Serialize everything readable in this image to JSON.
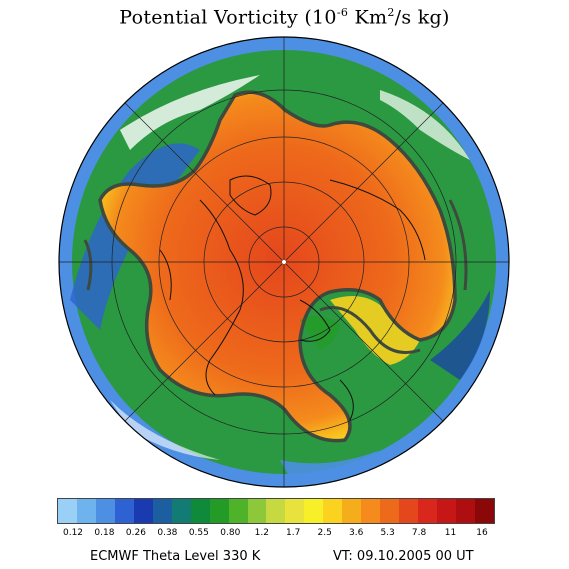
{
  "title": {
    "prefix": "Potential Vorticity (10",
    "exponent": "-6",
    "middle": " Km",
    "sq": "2",
    "suffix": "/s kg)"
  },
  "map": {
    "projection": "north polar stereographic",
    "field": "potential vorticity",
    "basemap": "coastlines and latitude/longitude grid"
  },
  "legend": {
    "colors": [
      "#9ad0f5",
      "#6fb3ee",
      "#4d8fe3",
      "#2e62d2",
      "#1a3bb0",
      "#1c5fa0",
      "#127c74",
      "#0e8a3a",
      "#249b26",
      "#4fb32a",
      "#8cc83a",
      "#c6d940",
      "#eae23c",
      "#f7f028",
      "#fad21f",
      "#f6ad1c",
      "#f48b1c",
      "#ee6a1b",
      "#e5471c",
      "#d9281b",
      "#c61616",
      "#ae0e10",
      "#8a0808"
    ],
    "tick_labels": [
      "0.12",
      "0.18",
      "0.26",
      "0.38",
      "0.55",
      "0.80",
      "1.2",
      "1.7",
      "2.5",
      "3.6",
      "5.3",
      "7.8",
      "11",
      "16"
    ]
  },
  "footer": {
    "left": "ECMWF Theta Level 330 K",
    "right": "VT: 09.10.2005 00 UT"
  },
  "colors": {
    "contour": "#3d4a3d",
    "coast": "#111111"
  }
}
